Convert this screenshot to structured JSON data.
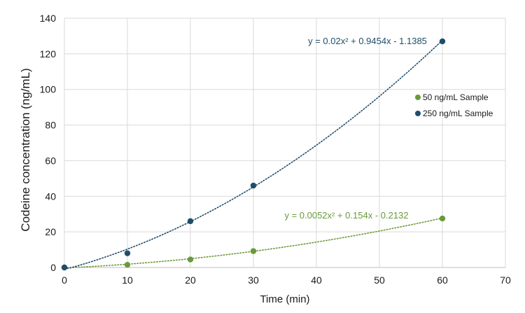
{
  "chart_data": {
    "type": "scatter",
    "xlabel": "Time (min)",
    "ylabel": "Codeine concentration (ng/mL)",
    "xlim": [
      0,
      70
    ],
    "ylim": [
      0,
      140
    ],
    "xticks": [
      "0",
      "10",
      "20",
      "30",
      "40",
      "50",
      "60",
      "70"
    ],
    "yticks": [
      "0",
      "20",
      "40",
      "60",
      "80",
      "100",
      "120",
      "140"
    ],
    "grid": true,
    "legend_position": "right",
    "series": [
      {
        "name": "50 ng/mL Sample",
        "color": "#6a9a3a",
        "x": [
          0,
          10,
          20,
          30,
          60
        ],
        "y": [
          0,
          1.5,
          4.5,
          9.2,
          27.5
        ],
        "trendline": {
          "type": "polynomial",
          "coefficients": [
            0.0052,
            0.154,
            -0.2132
          ],
          "label": "y = 0.0052x² + 0.154x - 0.2132"
        }
      },
      {
        "name": "250 ng/mL Sample",
        "color": "#1f4e6b",
        "x": [
          0,
          10,
          20,
          30,
          60
        ],
        "y": [
          0,
          8,
          26,
          46,
          127
        ],
        "trendline": {
          "type": "polynomial",
          "coefficients": [
            0.02,
            0.9454,
            -1.1385
          ],
          "label": "y = 0.02x² + 0.9454x - 1.1385"
        }
      }
    ]
  }
}
